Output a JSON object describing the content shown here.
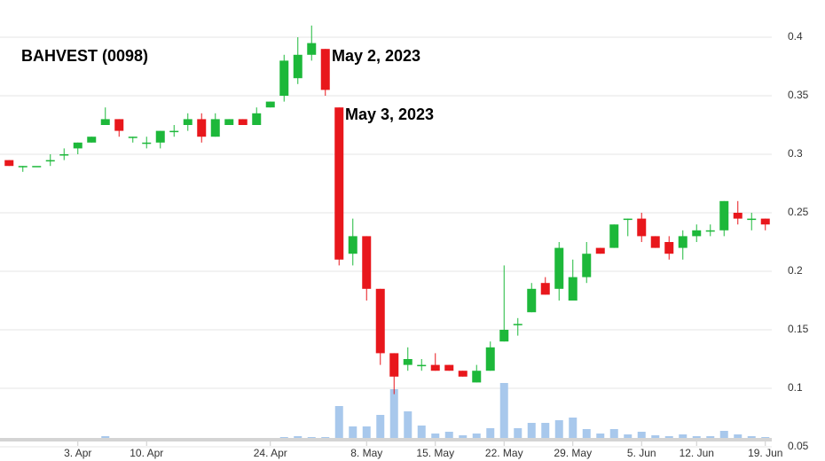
{
  "chart_data": {
    "type": "candlestick",
    "title": "BAHVEST (0098)",
    "annotations": [
      "May 2, 2023",
      "May 3, 2023"
    ],
    "categories": [
      null,
      null,
      null,
      null,
      null,
      "3. Apr",
      null,
      null,
      null,
      null,
      "10. Apr",
      null,
      null,
      null,
      null,
      null,
      null,
      null,
      null,
      "24. Apr",
      null,
      null,
      null,
      null,
      null,
      null,
      "8. May",
      null,
      null,
      null,
      null,
      "15. May",
      null,
      null,
      null,
      null,
      "22. May",
      null,
      null,
      null,
      null,
      "29. May",
      null,
      null,
      null,
      null,
      "5. Jun",
      null,
      null,
      null,
      "12. Jun",
      null,
      null,
      null,
      null,
      "19. Jun"
    ],
    "open": [
      0.295,
      0.29,
      0.29,
      0.295,
      0.3,
      0.305,
      0.31,
      0.325,
      0.33,
      0.315,
      0.31,
      0.31,
      0.32,
      0.325,
      0.33,
      0.315,
      0.325,
      0.33,
      0.325,
      0.34,
      0.35,
      0.365,
      0.385,
      0.39,
      0.34,
      0.215,
      0.23,
      0.185,
      0.13,
      0.12,
      0.12,
      0.12,
      0.12,
      0.115,
      0.105,
      0.115,
      0.14,
      0.155,
      0.165,
      0.19,
      0.185,
      0.175,
      0.195,
      0.22,
      0.22,
      0.245,
      0.245,
      0.23,
      0.225,
      0.22,
      0.23,
      0.235,
      0.235,
      0.25,
      0.245,
      0.245
    ],
    "high": [
      0.295,
      0.29,
      0.29,
      0.3,
      0.305,
      0.31,
      0.315,
      0.34,
      0.33,
      0.315,
      0.315,
      0.32,
      0.325,
      0.335,
      0.335,
      0.335,
      0.33,
      0.33,
      0.34,
      0.345,
      0.385,
      0.4,
      0.41,
      0.39,
      0.34,
      0.245,
      0.23,
      0.185,
      0.13,
      0.135,
      0.125,
      0.13,
      0.12,
      0.115,
      0.12,
      0.14,
      0.205,
      0.16,
      0.19,
      0.195,
      0.225,
      0.21,
      0.225,
      0.22,
      0.24,
      0.245,
      0.25,
      0.23,
      0.23,
      0.235,
      0.24,
      0.24,
      0.26,
      0.26,
      0.25,
      0.245
    ],
    "low": [
      0.29,
      0.285,
      0.29,
      0.29,
      0.295,
      0.3,
      0.31,
      0.325,
      0.315,
      0.31,
      0.305,
      0.305,
      0.315,
      0.32,
      0.31,
      0.315,
      0.325,
      0.325,
      0.325,
      0.34,
      0.345,
      0.36,
      0.38,
      0.35,
      0.205,
      0.205,
      0.175,
      0.12,
      0.095,
      0.115,
      0.115,
      0.115,
      0.115,
      0.11,
      0.105,
      0.115,
      0.14,
      0.145,
      0.165,
      0.18,
      0.175,
      0.175,
      0.19,
      0.215,
      0.22,
      0.23,
      0.225,
      0.22,
      0.21,
      0.21,
      0.225,
      0.23,
      0.23,
      0.24,
      0.235,
      0.235
    ],
    "close": [
      0.29,
      0.29,
      0.29,
      0.295,
      0.3,
      0.31,
      0.315,
      0.33,
      0.32,
      0.315,
      0.31,
      0.32,
      0.32,
      0.33,
      0.315,
      0.33,
      0.33,
      0.325,
      0.335,
      0.345,
      0.38,
      0.385,
      0.395,
      0.355,
      0.21,
      0.23,
      0.185,
      0.13,
      0.11,
      0.125,
      0.12,
      0.115,
      0.115,
      0.11,
      0.115,
      0.135,
      0.15,
      0.155,
      0.185,
      0.18,
      0.22,
      0.195,
      0.215,
      0.215,
      0.24,
      0.245,
      0.23,
      0.22,
      0.215,
      0.23,
      0.235,
      0.235,
      0.26,
      0.245,
      0.245,
      0.24
    ],
    "volume": [
      0,
      0,
      0,
      0,
      0,
      0,
      0,
      2,
      0,
      0,
      0,
      0,
      0,
      0,
      0,
      0,
      0,
      0,
      0,
      0,
      1,
      2,
      1,
      1,
      36,
      13,
      13,
      26,
      55,
      30,
      14,
      5,
      7,
      3,
      5,
      11,
      62,
      11,
      17,
      17,
      20,
      23,
      10,
      5,
      10,
      4,
      7,
      3,
      2,
      4,
      2,
      2,
      8,
      4,
      2,
      1
    ],
    "up_color": "#1db83a",
    "down_color": "#e8171c",
    "volume_color": "#a8c8ec",
    "ylim": [
      0.05,
      0.4
    ],
    "yticks": [
      0.05,
      0.1,
      0.15,
      0.2,
      0.25,
      0.3,
      0.35,
      0.4
    ],
    "grid": true
  }
}
